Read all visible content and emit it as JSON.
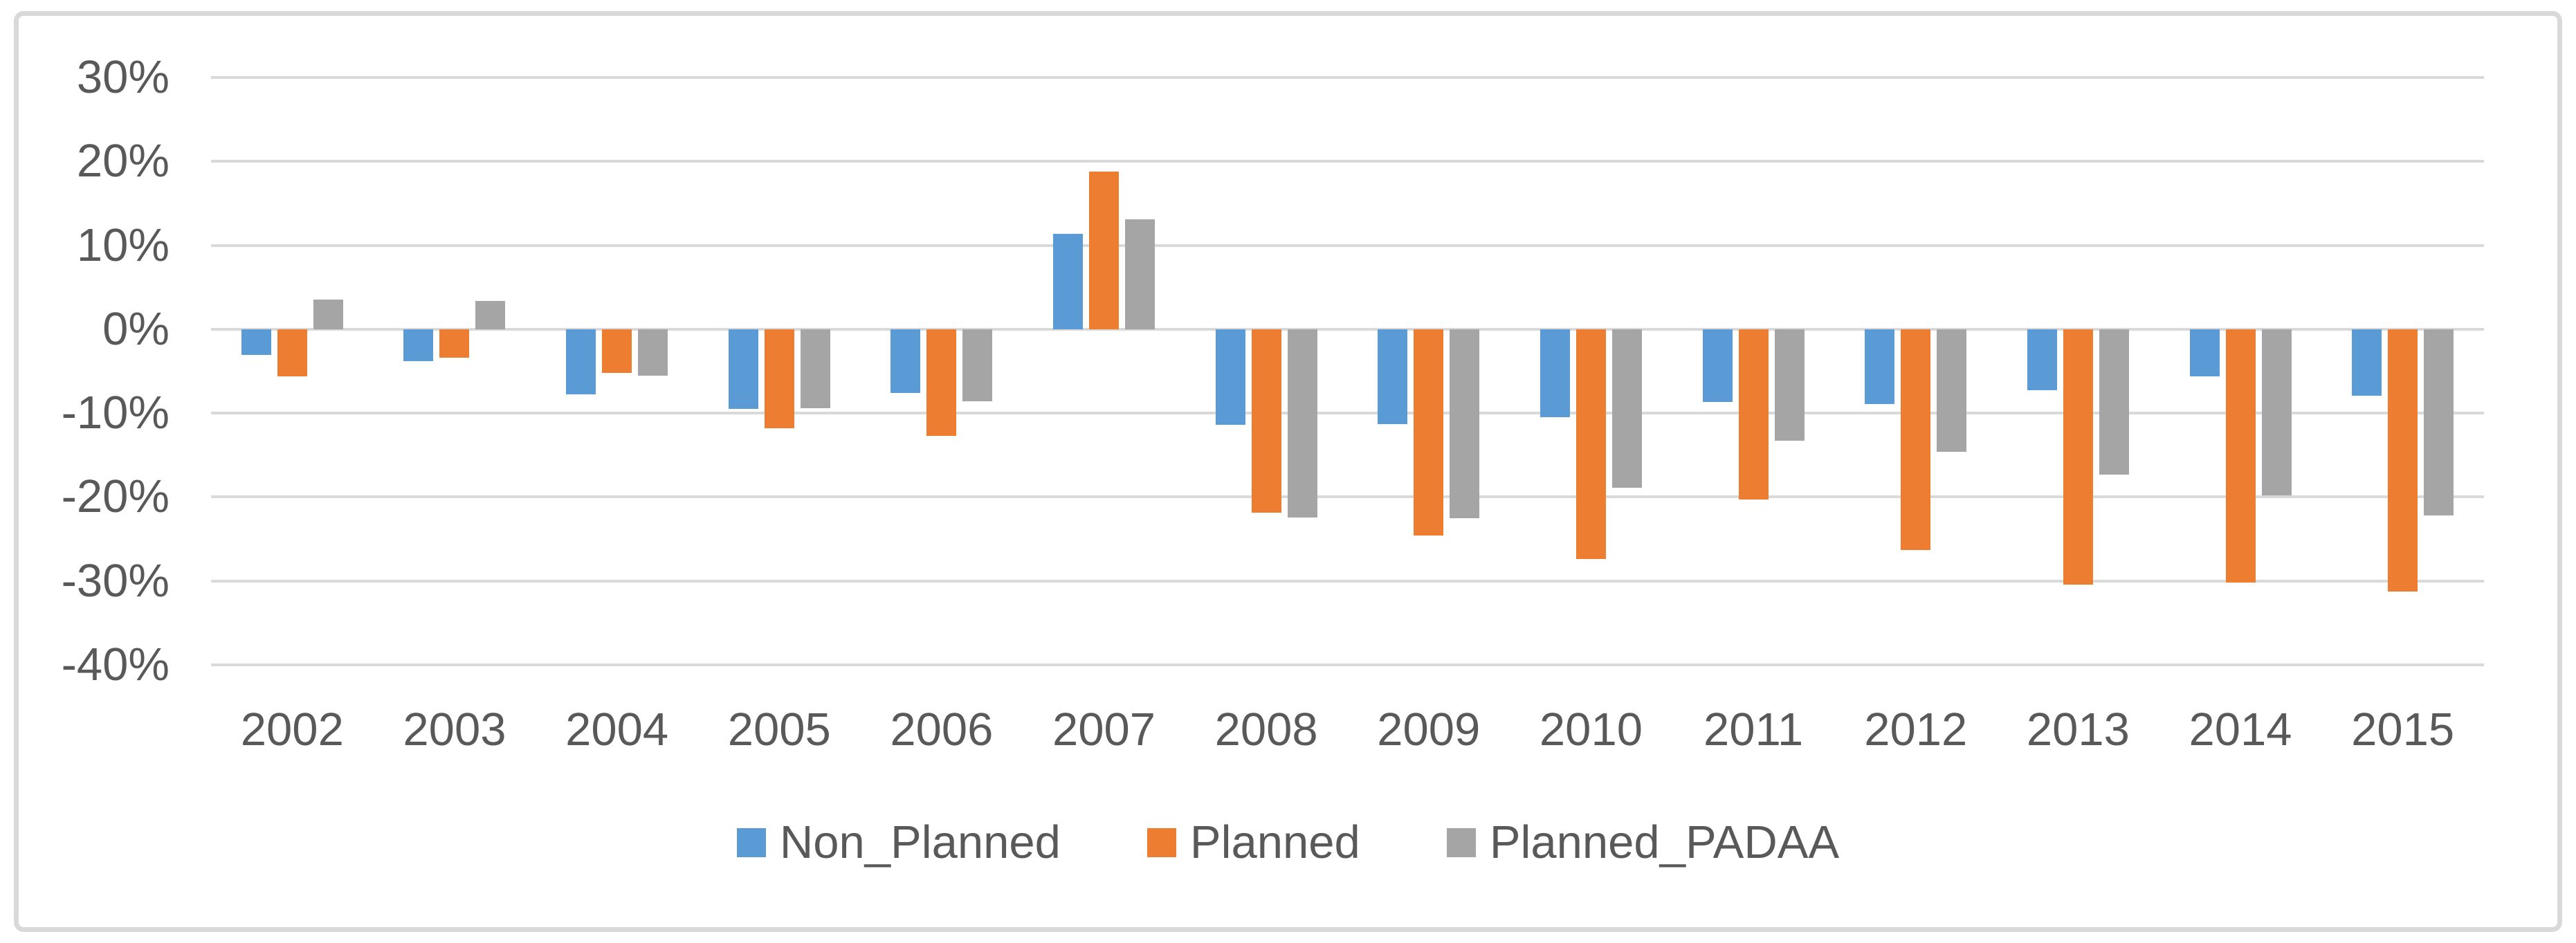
{
  "figure": {
    "background": "#FFFFFF",
    "frame_border_color": "#D9D9D9",
    "axis_text_color": "#595959",
    "gridline_color": "#D9D9D9"
  },
  "chart_data": {
    "type": "bar",
    "title": "",
    "xlabel": "",
    "ylabel": "",
    "categories": [
      "2002",
      "2003",
      "2004",
      "2005",
      "2006",
      "2007",
      "2008",
      "2009",
      "2010",
      "2011",
      "2012",
      "2013",
      "2014",
      "2015"
    ],
    "series": [
      {
        "name": "Non_Planned",
        "color": "#5B9BD5",
        "values": [
          -3.1,
          -3.8,
          -7.8,
          -9.5,
          -7.6,
          11.4,
          -11.4,
          -11.3,
          -10.5,
          -8.7,
          -8.9,
          -7.3,
          -5.6,
          -7.9
        ]
      },
      {
        "name": "Planned",
        "color": "#ED7D31",
        "values": [
          -5.6,
          -3.4,
          -5.2,
          -11.8,
          -12.7,
          18.8,
          -21.9,
          -24.6,
          -27.4,
          -20.3,
          -26.3,
          -30.4,
          -30.2,
          -31.3
        ]
      },
      {
        "name": "Planned_PADAA",
        "color": "#A5A5A5",
        "values": [
          3.5,
          3.4,
          -5.5,
          -9.4,
          -8.6,
          13.1,
          -22.4,
          -22.5,
          -18.9,
          -13.3,
          -14.6,
          -17.3,
          -19.8,
          -22.2
        ]
      }
    ],
    "ylim": [
      -40,
      30
    ],
    "ytick_step": 10,
    "ytick_labels": [
      "30%",
      "20%",
      "10%",
      "0%",
      "-10%",
      "-20%",
      "-30%",
      "-40%"
    ],
    "unit": "percent",
    "grid": true,
    "legend_position": "bottom"
  },
  "legend": {
    "items": [
      {
        "label": "Non_Planned",
        "color": "#5B9BD5"
      },
      {
        "label": "Planned",
        "color": "#ED7D31"
      },
      {
        "label": "Planned_PADAA",
        "color": "#A5A5A5"
      }
    ]
  }
}
